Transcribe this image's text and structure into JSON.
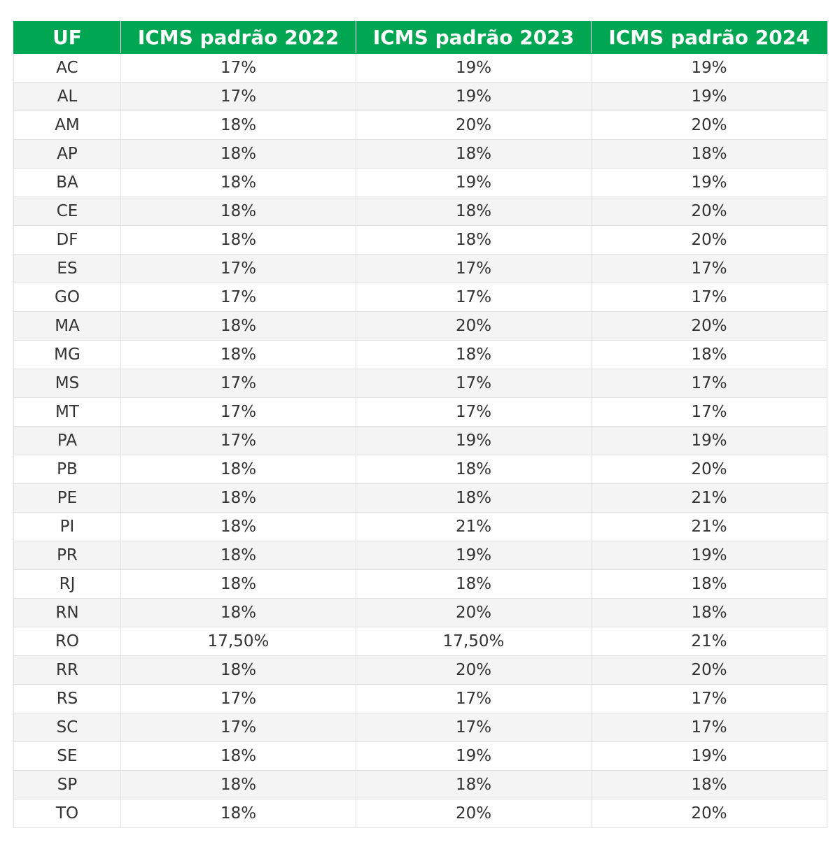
{
  "headers": [
    "UF",
    "ICMS padrão 2022",
    "ICMS padrão 2023",
    "ICMS padrão 2024"
  ],
  "rows": [
    [
      "AC",
      "17%",
      "19%",
      "19%"
    ],
    [
      "AL",
      "17%",
      "19%",
      "19%"
    ],
    [
      "AM",
      "18%",
      "20%",
      "20%"
    ],
    [
      "AP",
      "18%",
      "18%",
      "18%"
    ],
    [
      "BA",
      "18%",
      "19%",
      "19%"
    ],
    [
      "CE",
      "18%",
      "18%",
      "20%"
    ],
    [
      "DF",
      "18%",
      "18%",
      "20%"
    ],
    [
      "ES",
      "17%",
      "17%",
      "17%"
    ],
    [
      "GO",
      "17%",
      "17%",
      "17%"
    ],
    [
      "MA",
      "18%",
      "20%",
      "20%"
    ],
    [
      "MG",
      "18%",
      "18%",
      "18%"
    ],
    [
      "MS",
      "17%",
      "17%",
      "17%"
    ],
    [
      "MT",
      "17%",
      "17%",
      "17%"
    ],
    [
      "PA",
      "17%",
      "19%",
      "19%"
    ],
    [
      "PB",
      "18%",
      "18%",
      "20%"
    ],
    [
      "PE",
      "18%",
      "18%",
      "21%"
    ],
    [
      "PI",
      "18%",
      "21%",
      "21%"
    ],
    [
      "PR",
      "18%",
      "19%",
      "19%"
    ],
    [
      "RJ",
      "18%",
      "18%",
      "18%"
    ],
    [
      "RN",
      "18%",
      "20%",
      "18%"
    ],
    [
      "RO",
      "17,50%",
      "17,50%",
      "21%"
    ],
    [
      "RR",
      "18%",
      "20%",
      "20%"
    ],
    [
      "RS",
      "17%",
      "17%",
      "17%"
    ],
    [
      "SC",
      "17%",
      "17%",
      "17%"
    ],
    [
      "SE",
      "18%",
      "19%",
      "19%"
    ],
    [
      "SP",
      "18%",
      "18%",
      "18%"
    ],
    [
      "TO",
      "18%",
      "20%",
      "20%"
    ]
  ],
  "colors": {
    "header_bg": "#00a651",
    "header_text": "#ffffff",
    "row_alt_bg": "#f4f4f4",
    "cell_text": "#333333",
    "border": "#e0e0e0"
  }
}
